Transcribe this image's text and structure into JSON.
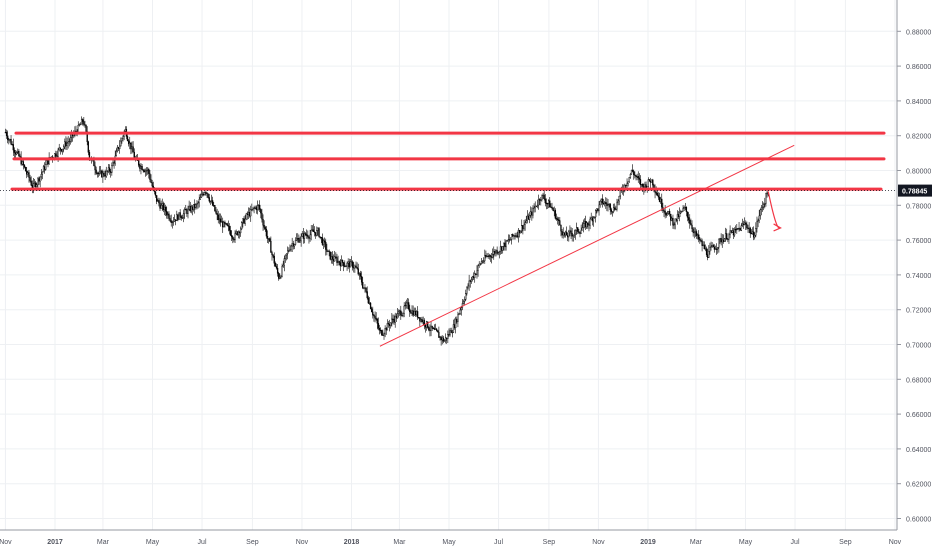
{
  "chart_data": {
    "type": "candlestick",
    "title": "",
    "xlabel": "",
    "ylabel": "",
    "ylim": [
      0.59,
      0.895
    ],
    "grid": true,
    "y_ticks": [
      "0.88000",
      "0.86000",
      "0.84000",
      "0.82000",
      "0.80000",
      "0.78000",
      "0.76000",
      "0.74000",
      "0.72000",
      "0.70000",
      "0.68000",
      "0.66000",
      "0.64000",
      "0.62000",
      "0.60000"
    ],
    "x_ticks": [
      "Nov",
      "2017",
      "Mar",
      "May",
      "Jul",
      "Sep",
      "Nov",
      "2018",
      "Mar",
      "May",
      "Jul",
      "Sep",
      "Nov",
      "2019",
      "Mar",
      "May",
      "Jul",
      "Sep",
      "Nov"
    ],
    "last_price": "0.78845",
    "last_price_value": 0.78845,
    "series_anchors": [
      [
        "2016-11-01",
        0.822
      ],
      [
        "2016-11-20",
        0.805
      ],
      [
        "2016-12-05",
        0.79
      ],
      [
        "2016-12-25",
        0.807
      ],
      [
        "2017-01-20",
        0.818
      ],
      [
        "2017-02-05",
        0.829
      ],
      [
        "2017-02-12",
        0.808
      ],
      [
        "2017-02-25",
        0.797
      ],
      [
        "2017-03-10",
        0.8
      ],
      [
        "2017-03-28",
        0.824
      ],
      [
        "2017-04-10",
        0.805
      ],
      [
        "2017-04-25",
        0.8
      ],
      [
        "2017-05-05",
        0.783
      ],
      [
        "2017-05-25",
        0.772
      ],
      [
        "2017-06-10",
        0.776
      ],
      [
        "2017-06-25",
        0.78
      ],
      [
        "2017-07-05",
        0.79
      ],
      [
        "2017-07-20",
        0.772
      ],
      [
        "2017-08-10",
        0.762
      ],
      [
        "2017-08-25",
        0.774
      ],
      [
        "2017-09-08",
        0.78
      ],
      [
        "2017-09-20",
        0.76
      ],
      [
        "2017-10-03",
        0.738
      ],
      [
        "2017-10-18",
        0.758
      ],
      [
        "2017-11-05",
        0.763
      ],
      [
        "2017-11-20",
        0.765
      ],
      [
        "2017-12-05",
        0.75
      ],
      [
        "2017-12-20",
        0.747
      ],
      [
        "2018-01-05",
        0.745
      ],
      [
        "2018-01-20",
        0.728
      ],
      [
        "2018-02-05",
        0.706
      ],
      [
        "2018-02-20",
        0.714
      ],
      [
        "2018-03-10",
        0.722
      ],
      [
        "2018-03-25",
        0.716
      ],
      [
        "2018-04-10",
        0.708
      ],
      [
        "2018-04-25",
        0.702
      ],
      [
        "2018-05-08",
        0.712
      ],
      [
        "2018-05-25",
        0.735
      ],
      [
        "2018-06-10",
        0.748
      ],
      [
        "2018-06-25",
        0.753
      ],
      [
        "2018-07-10",
        0.758
      ],
      [
        "2018-07-25",
        0.765
      ],
      [
        "2018-08-10",
        0.775
      ],
      [
        "2018-08-22",
        0.786
      ],
      [
        "2018-09-05",
        0.778
      ],
      [
        "2018-09-20",
        0.762
      ],
      [
        "2018-10-05",
        0.765
      ],
      [
        "2018-10-20",
        0.77
      ],
      [
        "2018-11-05",
        0.782
      ],
      [
        "2018-11-20",
        0.778
      ],
      [
        "2018-12-01",
        0.79
      ],
      [
        "2018-12-12",
        0.8
      ],
      [
        "2018-12-25",
        0.79
      ],
      [
        "2019-01-05",
        0.795
      ],
      [
        "2019-01-18",
        0.78
      ],
      [
        "2019-02-01",
        0.77
      ],
      [
        "2019-02-15",
        0.778
      ],
      [
        "2019-03-01",
        0.762
      ],
      [
        "2019-03-15",
        0.752
      ],
      [
        "2019-03-25",
        0.757
      ],
      [
        "2019-04-05",
        0.762
      ],
      [
        "2019-04-20",
        0.765
      ],
      [
        "2019-05-01",
        0.77
      ],
      [
        "2019-05-10",
        0.762
      ],
      [
        "2019-05-20",
        0.778
      ],
      [
        "2019-05-29",
        0.789
      ]
    ],
    "horizontal_levels": [
      0.8215,
      0.8067,
      0.7893
    ],
    "trendline": [
      [
        "2018-02-05",
        0.699
      ],
      [
        "2019-06-30",
        0.8145
      ]
    ],
    "projection": [
      [
        "2019-05-29",
        0.788
      ],
      [
        "2019-06-12",
        0.767
      ]
    ],
    "annotation_color": "#f23645",
    "candle_color": "#000000"
  }
}
